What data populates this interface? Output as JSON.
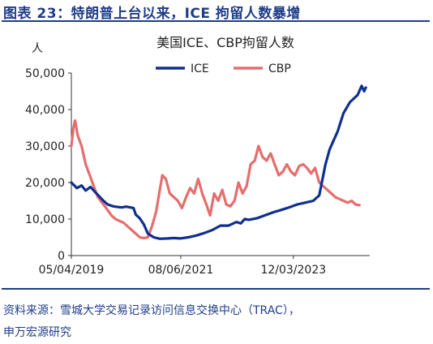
{
  "figure_title": "图表 23：特朗普上台以来，ICE 拘留人数暴增",
  "source_label": "资料来源：",
  "source_text": "雪城大学交易记录访问信息交换中心（TRAC），",
  "source_text2": "申万宏源研究",
  "colors": {
    "title": "#1f3d87",
    "ice": "#0f2f8f",
    "cbp": "#e46e6e",
    "axis": "#333333"
  },
  "chart_data": {
    "type": "line",
    "title": "美国ICE、CBP拘留人数",
    "ylabel": "人",
    "xlabel": "",
    "ylim": [
      0,
      50000
    ],
    "yticks": [
      "0",
      "10,000",
      "20,000",
      "30,000",
      "40,000",
      "50,000"
    ],
    "xlim": [
      "2019-05-04",
      "2025-07-01"
    ],
    "xticks": [
      "05/04/2019",
      "08/06/2021",
      "12/03/2023"
    ],
    "legend": "top-center",
    "grid": false,
    "series": [
      {
        "name": "ICE",
        "points": [
          [
            "2019-05-04",
            20000
          ],
          [
            "2019-06-15",
            18500
          ],
          [
            "2019-07-20",
            19200
          ],
          [
            "2019-08-20",
            17800
          ],
          [
            "2019-09-25",
            18800
          ],
          [
            "2019-10-25",
            17600
          ],
          [
            "2019-12-01",
            16200
          ],
          [
            "2020-01-01",
            15000
          ],
          [
            "2020-02-01",
            14000
          ],
          [
            "2020-03-15",
            13500
          ],
          [
            "2020-04-20",
            13300
          ],
          [
            "2020-05-20",
            13200
          ],
          [
            "2020-06-20",
            13400
          ],
          [
            "2020-07-20",
            13200
          ],
          [
            "2020-08-15",
            13000
          ],
          [
            "2020-09-01",
            11200
          ],
          [
            "2020-10-01",
            10200
          ],
          [
            "2020-11-01",
            8500
          ],
          [
            "2020-12-01",
            6000
          ],
          [
            "2021-01-15",
            5000
          ],
          [
            "2021-03-01",
            4600
          ],
          [
            "2021-05-01",
            4700
          ],
          [
            "2021-06-15",
            4800
          ],
          [
            "2021-08-01",
            4700
          ],
          [
            "2021-10-01",
            5000
          ],
          [
            "2021-12-01",
            5500
          ],
          [
            "2022-02-01",
            6200
          ],
          [
            "2022-04-01",
            7000
          ],
          [
            "2022-06-01",
            8200
          ],
          [
            "2022-08-01",
            8200
          ],
          [
            "2022-10-01",
            9200
          ],
          [
            "2022-11-01",
            8800
          ],
          [
            "2022-12-01",
            10000
          ],
          [
            "2023-01-01",
            9800
          ],
          [
            "2023-03-01",
            10200
          ],
          [
            "2023-05-01",
            11000
          ],
          [
            "2023-07-01",
            11800
          ],
          [
            "2023-09-01",
            12500
          ],
          [
            "2023-11-01",
            13200
          ],
          [
            "2024-01-01",
            14000
          ],
          [
            "2024-03-01",
            14500
          ],
          [
            "2024-05-01",
            15000
          ],
          [
            "2024-06-15",
            16500
          ],
          [
            "2024-08-01",
            25000
          ],
          [
            "2024-09-01",
            29000
          ],
          [
            "2024-10-01",
            31500
          ],
          [
            "2024-11-01",
            34000
          ],
          [
            "2024-12-15",
            39000
          ],
          [
            "2025-02-01",
            42000
          ],
          [
            "2025-04-01",
            44000
          ],
          [
            "2025-05-01",
            46500
          ],
          [
            "2025-05-20",
            45000
          ],
          [
            "2025-06-01",
            46000
          ]
        ]
      },
      {
        "name": "CBP",
        "points": [
          [
            "2019-05-04",
            30000
          ],
          [
            "2019-05-20",
            35000
          ],
          [
            "2019-06-01",
            37000
          ],
          [
            "2019-06-20",
            33000
          ],
          [
            "2019-07-20",
            30000
          ],
          [
            "2019-08-20",
            25000
          ],
          [
            "2019-09-20",
            22000
          ],
          [
            "2019-10-20",
            19000
          ],
          [
            "2019-11-20",
            16000
          ],
          [
            "2020-01-01",
            14000
          ],
          [
            "2020-02-01",
            12500
          ],
          [
            "2020-03-01",
            11000
          ],
          [
            "2020-04-01",
            10000
          ],
          [
            "2020-05-01",
            9500
          ],
          [
            "2020-06-01",
            9000
          ],
          [
            "2020-07-01",
            8000
          ],
          [
            "2020-08-01",
            7000
          ],
          [
            "2020-09-01",
            6000
          ],
          [
            "2020-10-01",
            5000
          ],
          [
            "2020-11-01",
            4800
          ],
          [
            "2020-12-01",
            5000
          ],
          [
            "2021-01-01",
            8000
          ],
          [
            "2021-02-01",
            12000
          ],
          [
            "2021-03-01",
            18000
          ],
          [
            "2021-03-20",
            22000
          ],
          [
            "2021-04-15",
            21000
          ],
          [
            "2021-05-15",
            17000
          ],
          [
            "2021-06-15",
            16000
          ],
          [
            "2021-07-15",
            15000
          ],
          [
            "2021-08-15",
            13000
          ],
          [
            "2021-09-15",
            16000
          ],
          [
            "2021-10-15",
            18500
          ],
          [
            "2021-11-15",
            17000
          ],
          [
            "2021-12-15",
            21000
          ],
          [
            "2022-01-15",
            17000
          ],
          [
            "2022-02-15",
            14000
          ],
          [
            "2022-03-15",
            11000
          ],
          [
            "2022-04-15",
            17000
          ],
          [
            "2022-05-15",
            15000
          ],
          [
            "2022-06-15",
            18000
          ],
          [
            "2022-07-15",
            14000
          ],
          [
            "2022-08-15",
            13500
          ],
          [
            "2022-09-15",
            15000
          ],
          [
            "2022-10-15",
            20000
          ],
          [
            "2022-11-15",
            17000
          ],
          [
            "2022-12-15",
            19000
          ],
          [
            "2023-01-15",
            25000
          ],
          [
            "2023-02-15",
            26000
          ],
          [
            "2023-03-15",
            30000
          ],
          [
            "2023-04-15",
            27000
          ],
          [
            "2023-05-15",
            26000
          ],
          [
            "2023-06-15",
            28000
          ],
          [
            "2023-07-15",
            25000
          ],
          [
            "2023-08-15",
            22000
          ],
          [
            "2023-09-15",
            23000
          ],
          [
            "2023-10-15",
            25000
          ],
          [
            "2023-11-15",
            23000
          ],
          [
            "2023-12-15",
            22000
          ],
          [
            "2024-01-15",
            24500
          ],
          [
            "2024-02-15",
            25000
          ],
          [
            "2024-03-15",
            24000
          ],
          [
            "2024-04-15",
            22500
          ],
          [
            "2024-05-15",
            24000
          ],
          [
            "2024-06-15",
            20000
          ],
          [
            "2024-07-15",
            19000
          ],
          [
            "2024-08-15",
            18000
          ],
          [
            "2024-09-15",
            17000
          ],
          [
            "2024-10-15",
            16000
          ],
          [
            "2024-11-15",
            15500
          ],
          [
            "2024-12-15",
            15000
          ],
          [
            "2025-01-15",
            14500
          ],
          [
            "2025-02-15",
            15000
          ],
          [
            "2025-03-15",
            14000
          ],
          [
            "2025-04-15",
            13800
          ]
        ]
      }
    ]
  }
}
